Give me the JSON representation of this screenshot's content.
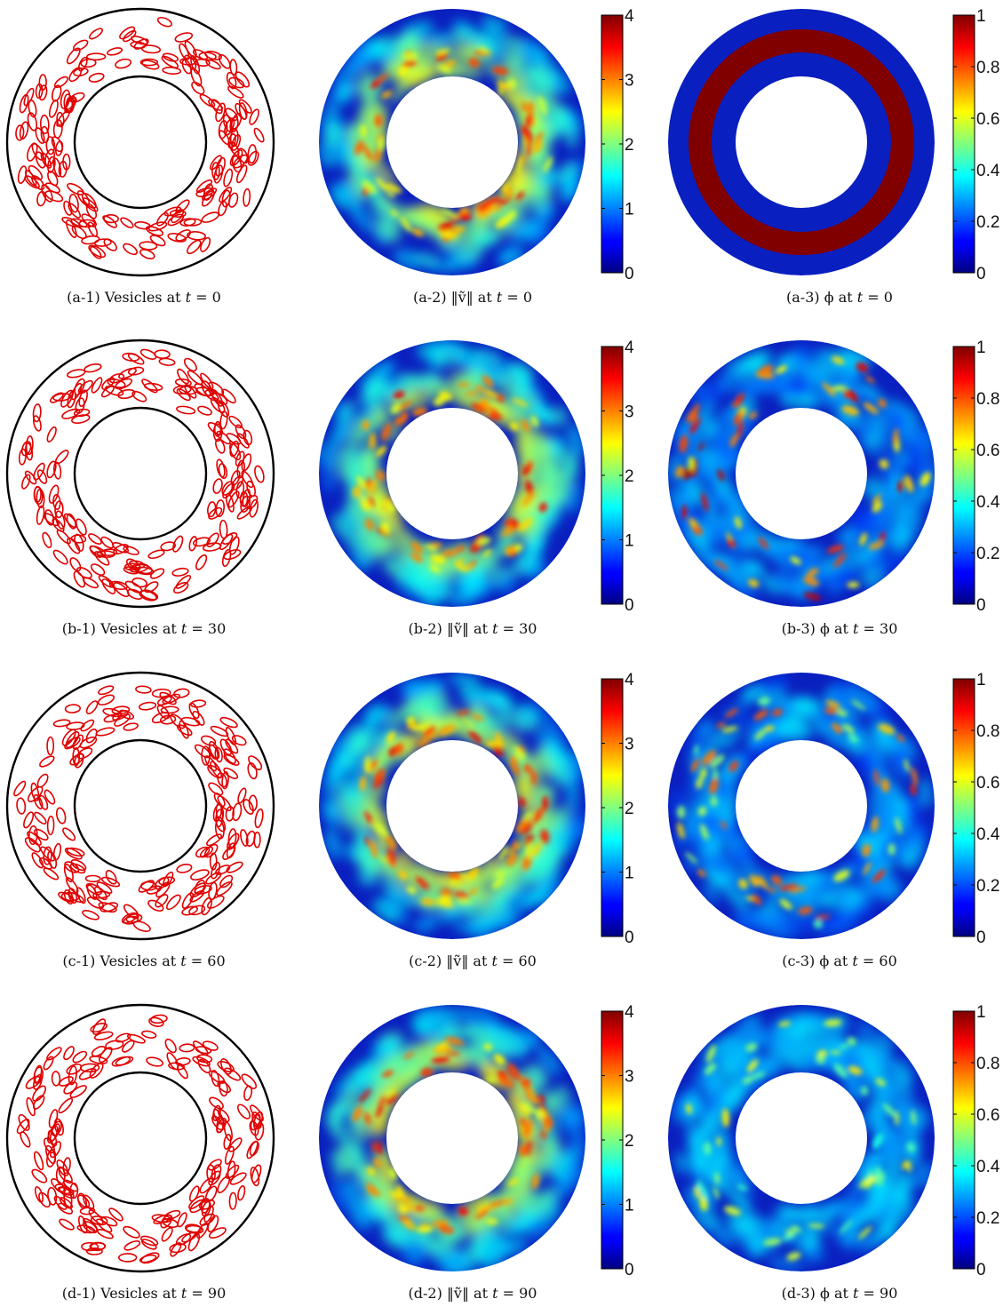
{
  "figure": {
    "rows": [
      {
        "panels": [
          {
            "kind": "vesicles",
            "caption_tag": "(a-1)",
            "caption_text": "Vesicles at",
            "t": 0
          },
          {
            "kind": "velocity",
            "caption_tag": "(a-2)",
            "caption_text": "‖ṽ‖ at",
            "t": 0
          },
          {
            "kind": "phi",
            "caption_tag": "(a-3)",
            "caption_text": "ϕ at",
            "t": 0
          }
        ]
      },
      {
        "panels": [
          {
            "kind": "vesicles",
            "caption_tag": "(b-1)",
            "caption_text": "Vesicles at",
            "t": 30
          },
          {
            "kind": "velocity",
            "caption_tag": "(b-2)",
            "caption_text": "‖ṽ‖ at",
            "t": 30
          },
          {
            "kind": "phi",
            "caption_tag": "(b-3)",
            "caption_text": "ϕ at",
            "t": 30
          }
        ]
      },
      {
        "panels": [
          {
            "kind": "vesicles",
            "caption_tag": "(c-1)",
            "caption_text": "Vesicles at",
            "t": 60
          },
          {
            "kind": "velocity",
            "caption_tag": "(c-2)",
            "caption_text": "‖ṽ‖ at",
            "t": 60
          },
          {
            "kind": "phi",
            "caption_tag": "(c-3)",
            "caption_text": "ϕ at",
            "t": 60
          }
        ]
      },
      {
        "panels": [
          {
            "kind": "vesicles",
            "caption_tag": "(d-1)",
            "caption_text": "Vesicles at",
            "t": 90
          },
          {
            "kind": "velocity",
            "caption_tag": "(d-2)",
            "caption_text": "‖ṽ‖ at",
            "t": 90
          },
          {
            "kind": "phi",
            "caption_tag": "(d-3)",
            "caption_text": "ϕ at",
            "t": 90
          }
        ]
      }
    ],
    "caption_t_symbol": "t =",
    "colorbars": {
      "velocity": {
        "min": 0,
        "max": 4,
        "ticks": [
          "0",
          "1",
          "2",
          "3",
          "4"
        ]
      },
      "phi": {
        "min": 0,
        "max": 1,
        "ticks": [
          "0",
          "0.2",
          "0.4",
          "0.6",
          "0.8",
          "1"
        ]
      }
    },
    "colors": {
      "vesicle": "#e00000",
      "wall": "#000000",
      "field_background": "#0a1fbf",
      "phi_band_t0": "#800000",
      "colormap": "jet"
    }
  }
}
